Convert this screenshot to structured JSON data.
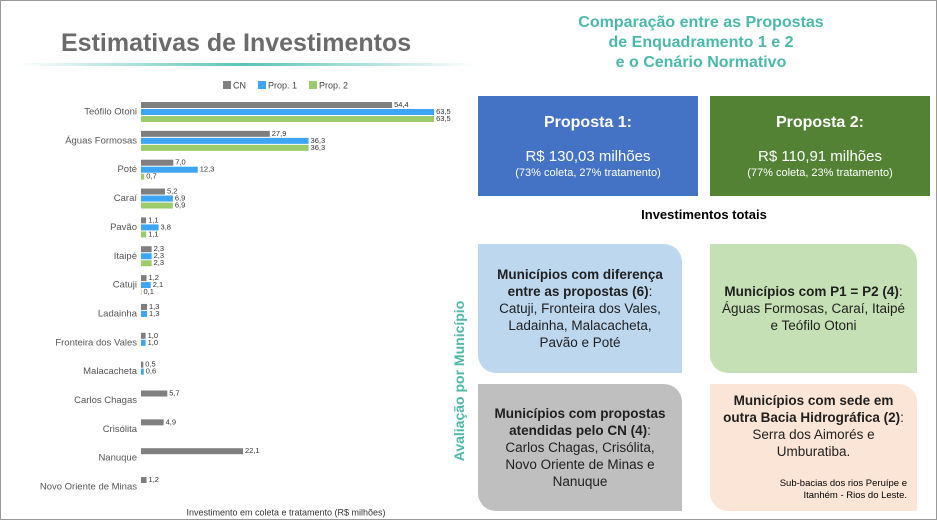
{
  "header": {
    "title": "Estimativas de Investimentos",
    "subtitle_lines": [
      "Comparação entre as Propostas",
      "de Enquadramento 1 e 2",
      "e o Cenário Normativo"
    ]
  },
  "chart_data": {
    "type": "barh",
    "xlabel": "Investimento em coleta e tratamento (R$ milhões)",
    "xlim": [
      0,
      65
    ],
    "categories": [
      "Teófilo Otoni",
      "Águas Formosas",
      "Poté",
      "Caraí",
      "Pavão",
      "Itaipé",
      "Catuji",
      "Ladainha",
      "Fronteira dos Vales",
      "Malacacheta",
      "Carlos Chagas",
      "Crisólita",
      "Nanuque",
      "Novo Oriente de Minas"
    ],
    "series": [
      {
        "name": "CN",
        "color": "#7f7f7f",
        "values": [
          54.4,
          27.9,
          7.0,
          5.2,
          1.1,
          2.3,
          1.2,
          1.3,
          1.0,
          0.5,
          5.7,
          4.9,
          22.1,
          1.2
        ],
        "value_labels": [
          "54,4",
          "27,9",
          "7,0",
          "5,2",
          "1,1",
          "2,3",
          "1,2",
          "1,3",
          "1,0",
          "0,5",
          "5,7",
          "4,9",
          "22,1",
          "1,2"
        ]
      },
      {
        "name": "Prop. 1",
        "color": "#3da5f4",
        "values": [
          63.5,
          36.3,
          12.3,
          6.9,
          3.8,
          2.3,
          2.1,
          1.3,
          1.0,
          0.6,
          null,
          null,
          null,
          null
        ],
        "value_labels": [
          "63,5",
          "36,3",
          "12,3",
          "6,9",
          "3,8",
          "2,3",
          "2,1",
          "1,3",
          "1,0",
          "0,6",
          null,
          null,
          null,
          null
        ]
      },
      {
        "name": "Prop. 2",
        "color": "#9bcb6b",
        "values": [
          63.5,
          36.3,
          0.7,
          6.9,
          1.1,
          2.3,
          0.1,
          null,
          null,
          null,
          null,
          null,
          null,
          null
        ],
        "value_labels": [
          "63,5",
          "36,3",
          "0,7",
          "6,9",
          "1,1",
          "2,3",
          "0,1",
          null,
          null,
          null,
          null,
          null,
          null,
          null
        ]
      }
    ]
  },
  "proposals": [
    {
      "title": "Proposta 1:",
      "amount": "R$ 130,03 milhões",
      "detail": "(73% coleta, 27% tratamento)",
      "color": "#4472c4"
    },
    {
      "title": "Proposta 2:",
      "amount": "R$ 110,91 milhões",
      "detail": "(77% coleta, 23% tratamento)",
      "color": "#548235"
    }
  ],
  "totals_label": "Investimentos totais",
  "side_label": "Avaliação por Município",
  "groups": [
    {
      "bold": "Municípios com diferença entre as propostas (6)",
      "text": ": Catuji, Fronteira dos Vales, Ladainha, Malacacheta, Pavão e Poté",
      "color": "#bdd7ee"
    },
    {
      "bold": "Municípios com P1 = P2 (4)",
      "text": ": Águas Formosas, Caraí, Itaipé e Teófilo Otoni",
      "color": "#c5e0b4"
    },
    {
      "bold": "Municípios com propostas atendidas pelo CN (4)",
      "text": ": Carlos Chagas, Crisólita, Novo Oriente de Minas e Nanuque",
      "color": "#bfbfbf"
    },
    {
      "bold": "Municípios com sede em outra Bacia Hidrográfica (2)",
      "text": ": Serra dos Aimorés e Umburatiba.",
      "color": "#fbe5d6"
    }
  ],
  "footnote": "Sub-bacias dos rios Peruípe e Itanhém - Rios do Leste."
}
